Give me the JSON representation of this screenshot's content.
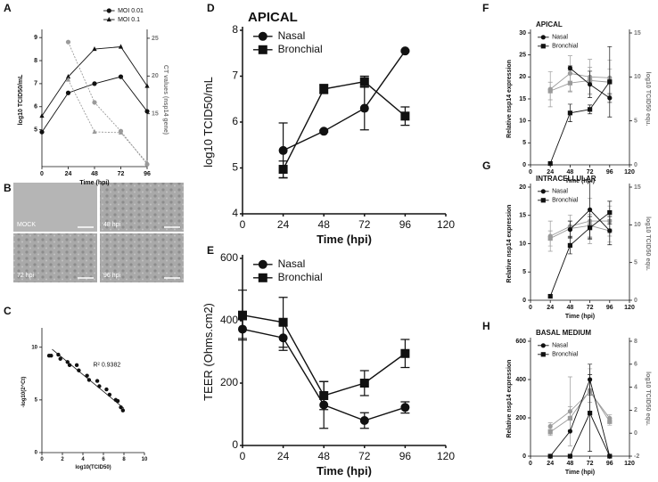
{
  "chart_data": [
    {
      "type": "line",
      "panel": "A",
      "xlabel": "Time (hpi)",
      "ylabel": "log10 TCID50/mL",
      "y2label": "CT values (nsp14 gene)",
      "x": [
        0,
        24,
        48,
        72,
        96
      ],
      "xlim": [
        0,
        96
      ],
      "xticks": [
        0,
        24,
        48,
        72,
        96
      ],
      "ylim": [
        3.4,
        9.2
      ],
      "yticks": [
        5,
        6,
        7,
        8,
        9
      ],
      "y2lim": [
        8,
        25.7
      ],
      "y2ticks": [
        15,
        20,
        25
      ],
      "legend": "upper right",
      "series": [
        {
          "name": "MOI 0.01",
          "color": "#111111",
          "marker": "circle",
          "values": [
            4.9,
            6.6,
            7.0,
            7.3,
            5.8
          ]
        },
        {
          "name": "MOI 0.1",
          "color": "#111111",
          "marker": "triangle",
          "values": [
            5.6,
            7.3,
            8.5,
            8.6,
            6.9
          ]
        },
        {
          "color": "#9a9a9a",
          "marker": "circle",
          "dashed": true,
          "axis": "y2",
          "values": [
            null,
            24.5,
            16.5,
            12.7,
            8.3
          ]
        },
        {
          "color": "#9a9a9a",
          "marker": "triangle",
          "dashed": true,
          "axis": "y2",
          "values": [
            null,
            19.5,
            12.6,
            12.5,
            8.5
          ]
        }
      ]
    },
    {
      "type": "scatter",
      "panel": "C",
      "xlabel": "log10(TCID50)",
      "ylabel": "-log10(2^Ct)",
      "annotation": "R² 0.9382",
      "xlim": [
        0,
        10
      ],
      "xticks": [
        0,
        2,
        4,
        6,
        8,
        10
      ],
      "ylim": [
        0,
        11.5
      ],
      "yticks": [
        0,
        5,
        10
      ],
      "color": "#111111",
      "x": [
        0.7,
        0.9,
        1.6,
        1.8,
        2.5,
        2.7,
        3.4,
        3.6,
        4.4,
        4.6,
        5.4,
        5.6,
        6.3,
        6.6,
        7.2,
        7.4,
        7.7,
        7.9
      ],
      "y": [
        9.2,
        9.2,
        9.3,
        8.9,
        8.6,
        8.3,
        8.3,
        7.8,
        7.3,
        6.9,
        6.8,
        6.3,
        6.0,
        5.5,
        5.0,
        4.9,
        4.3,
        4.0
      ],
      "fit": {
        "x": [
          1,
          8
        ],
        "y": [
          9.8,
          4.2
        ]
      }
    },
    {
      "type": "line",
      "panel": "D",
      "title": "APICAL",
      "xlabel": "Time (hpi)",
      "ylabel": "log10 TCID50/mL",
      "x": [
        24,
        48,
        72,
        96
      ],
      "xlim": [
        0,
        120
      ],
      "xticks": [
        0,
        24,
        48,
        72,
        96,
        120
      ],
      "ylim": [
        4,
        8
      ],
      "yticks": [
        4,
        5,
        6,
        7,
        8
      ],
      "legend": "upper left",
      "series": [
        {
          "name": "Nasal",
          "color": "#111111",
          "marker": "circle",
          "values": [
            5.38,
            5.8,
            6.3,
            7.55
          ],
          "errors": [
            0.6,
            0.02,
            0.47,
            0.02
          ]
        },
        {
          "name": "Bronchial",
          "color": "#111111",
          "marker": "square",
          "values": [
            4.97,
            6.72,
            6.88,
            6.13
          ],
          "errors": [
            0.18,
            0.1,
            0.12,
            0.2
          ]
        }
      ]
    },
    {
      "type": "line",
      "panel": "E",
      "xlabel": "Time (hpi)",
      "ylabel": "TEER (Ohms.cm2)",
      "x": [
        0,
        24,
        48,
        72,
        96
      ],
      "xlim": [
        0,
        120
      ],
      "xticks": [
        0,
        24,
        48,
        72,
        96,
        120
      ],
      "ylim": [
        0,
        600
      ],
      "yticks": [
        0,
        200,
        400,
        600
      ],
      "legend": "upper left",
      "series": [
        {
          "name": "Nasal",
          "color": "#111111",
          "marker": "circle",
          "values": [
            373,
            345,
            130,
            80,
            122
          ],
          "errors": [
            30,
            40,
            75,
            25,
            18
          ]
        },
        {
          "name": "Bronchial",
          "color": "#111111",
          "marker": "square",
          "values": [
            418,
            395,
            160,
            200,
            295
          ],
          "errors": [
            80,
            80,
            45,
            40,
            45
          ]
        }
      ]
    },
    {
      "type": "line",
      "panel": "F",
      "title": "APICAL",
      "xlabel": "Time (hpi)",
      "ylabel": "Relative nsp14 expression",
      "y2label": "log10 TCID50 equ.",
      "x": [
        24,
        48,
        72,
        96
      ],
      "xlim": [
        0,
        120
      ],
      "xticks": [
        0,
        24,
        48,
        72,
        96,
        120
      ],
      "ylim": [
        0,
        30
      ],
      "yticks": [
        0,
        5,
        10,
        15,
        20,
        25,
        30
      ],
      "y2lim": [
        0,
        15
      ],
      "y2ticks": [
        0,
        5,
        10,
        15
      ],
      "legend": "upper left",
      "series": [
        {
          "color": "#9a9a9a",
          "marker": "circle",
          "axis": "y2",
          "values": [
            8.6,
            10.4,
            10.0,
            9.9
          ],
          "errors": [
            2,
            2,
            2,
            2
          ]
        },
        {
          "color": "#9a9a9a",
          "marker": "square",
          "axis": "y2",
          "values": [
            8.4,
            9.3,
            9.6,
            9.4
          ],
          "errors": [
            1,
            1,
            1.5,
            1.5
          ]
        },
        {
          "name": "Nasal",
          "color": "#111111",
          "marker": "circle",
          "values": [
            null,
            22,
            18.3,
            15.2
          ],
          "errors": [
            null,
            0.5,
            3,
            1
          ]
        },
        {
          "name": "Bronchial",
          "color": "#111111",
          "marker": "square",
          "values": [
            0.3,
            11.8,
            12.6,
            18.9
          ],
          "errors": [
            null,
            2,
            1,
            8
          ]
        }
      ]
    },
    {
      "type": "line",
      "panel": "G",
      "title": "INTRACELLULAR",
      "xlabel": "Time (hpi)",
      "ylabel": "Relative nsp14 expression",
      "y2label": "log10 TCID50 equ.",
      "x": [
        24,
        48,
        72,
        96
      ],
      "xlim": [
        0,
        120
      ],
      "xticks": [
        0,
        24,
        48,
        72,
        96,
        120
      ],
      "ylim": [
        0,
        20
      ],
      "yticks": [
        0,
        5,
        10,
        15,
        20
      ],
      "y2lim": [
        0,
        15
      ],
      "y2ticks": [
        0,
        5,
        10,
        15
      ],
      "legend": "upper left",
      "series": [
        {
          "color": "#9a9a9a",
          "marker": "circle",
          "axis": "y2",
          "values": [
            8.5,
            9.8,
            10.5,
            10.5
          ],
          "errors": [
            2,
            1.5,
            3,
            2
          ]
        },
        {
          "color": "#9a9a9a",
          "marker": "square",
          "axis": "y2",
          "values": [
            8.2,
            9.5,
            9.9,
            9.2
          ],
          "errors": [
            1,
            1,
            1.5,
            1.5
          ]
        },
        {
          "name": "Nasal",
          "color": "#111111",
          "marker": "circle",
          "values": [
            null,
            12.5,
            16,
            12.3
          ],
          "errors": [
            null,
            1.5,
            5,
            2.5
          ]
        },
        {
          "name": "Bronchial",
          "color": "#111111",
          "marker": "square",
          "values": [
            0.7,
            9.7,
            12.8,
            15.5
          ],
          "errors": [
            null,
            1.5,
            2,
            2
          ]
        }
      ]
    },
    {
      "type": "line",
      "panel": "H",
      "title": "BASAL MEDIUM",
      "xlabel": "Time (hpi)",
      "ylabel": "Relative nsp14 expression",
      "y2label": "log10 TCID50 equ.",
      "x": [
        24,
        48,
        72,
        96
      ],
      "xlim": [
        0,
        120
      ],
      "xticks": [
        0,
        24,
        48,
        72,
        96,
        120
      ],
      "ylim": [
        0,
        600
      ],
      "yticks": [
        0,
        200,
        400,
        600
      ],
      "y2lim": [
        -2,
        8
      ],
      "y2ticks": [
        -2,
        0,
        2,
        4,
        6,
        8
      ],
      "legend": "upper left",
      "series": [
        {
          "color": "#9a9a9a",
          "marker": "circle",
          "axis": "y2",
          "values": [
            0.6,
            1.9,
            3.6,
            1.3
          ],
          "errors": [
            0.3,
            3,
            2,
            0.3
          ]
        },
        {
          "color": "#9a9a9a",
          "marker": "square",
          "axis": "y2",
          "values": [
            0.1,
            1.3,
            3.7,
            1.0
          ],
          "errors": [
            0.3,
            1,
            1,
            0.3
          ]
        },
        {
          "name": "Nasal",
          "color": "#111111",
          "marker": "circle",
          "values": [
            0,
            130,
            400,
            0
          ],
          "errors": [
            null,
            null,
            80,
            null
          ]
        },
        {
          "name": "Bronchial",
          "color": "#111111",
          "marker": "square",
          "values": [
            0,
            0,
            225,
            0
          ],
          "errors": [
            null,
            null,
            200,
            null
          ]
        }
      ]
    }
  ],
  "micrographs": {
    "panel": "B",
    "labels": [
      "MOCK",
      "48 hpi",
      "72 hpi",
      "96 hpi"
    ]
  }
}
